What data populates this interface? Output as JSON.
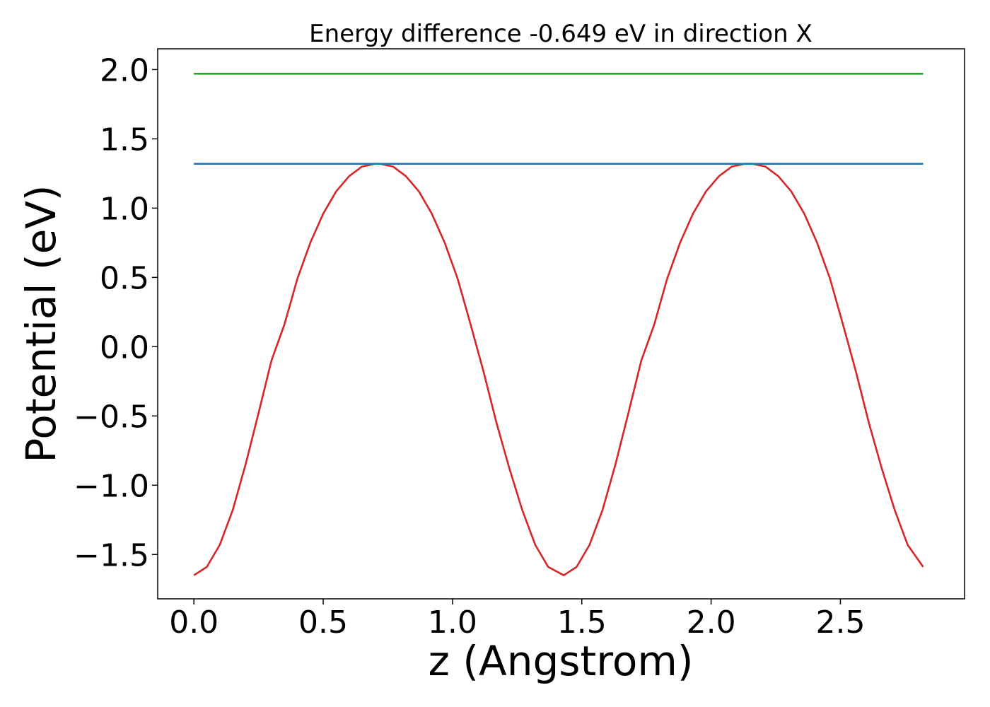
{
  "chart_data": {
    "type": "line",
    "title": "Energy difference -0.649 eV in direction X",
    "xlabel": "z (Angstrom)",
    "ylabel": "Potential (eV)",
    "xlim": [
      -0.14,
      2.98
    ],
    "ylim": [
      -1.82,
      2.15
    ],
    "xticks": [
      {
        "value": 0.0,
        "label": "0.0"
      },
      {
        "value": 0.5,
        "label": "0.5"
      },
      {
        "value": 1.0,
        "label": "1.0"
      },
      {
        "value": 1.5,
        "label": "1.5"
      },
      {
        "value": 2.0,
        "label": "2.0"
      },
      {
        "value": 2.5,
        "label": "2.5"
      }
    ],
    "yticks": [
      {
        "value": -1.5,
        "label": "−1.5"
      },
      {
        "value": -1.0,
        "label": "−1.0"
      },
      {
        "value": -0.5,
        "label": "−0.5"
      },
      {
        "value": 0.0,
        "label": "0.0"
      },
      {
        "value": 0.5,
        "label": "0.5"
      },
      {
        "value": 1.0,
        "label": "1.0"
      },
      {
        "value": 1.5,
        "label": "1.5"
      },
      {
        "value": 2.0,
        "label": "2.0"
      }
    ],
    "grid": false,
    "series": [
      {
        "color": "#d62728",
        "x": [
          0.0,
          0.05,
          0.1,
          0.15,
          0.2,
          0.25,
          0.3,
          0.35,
          0.4,
          0.45,
          0.5,
          0.55,
          0.6,
          0.65,
          0.7,
          0.72,
          0.77,
          0.82,
          0.87,
          0.92,
          0.97,
          1.02,
          1.07,
          1.12,
          1.17,
          1.22,
          1.27,
          1.32,
          1.37,
          1.43,
          1.48,
          1.53,
          1.58,
          1.63,
          1.68,
          1.73,
          1.78,
          1.83,
          1.88,
          1.93,
          1.98,
          2.03,
          2.08,
          2.13,
          2.16,
          2.21,
          2.26,
          2.31,
          2.36,
          2.41,
          2.46,
          2.51,
          2.56,
          2.61,
          2.66,
          2.71,
          2.76,
          2.82
        ],
        "values": [
          -1.65,
          -1.59,
          -1.43,
          -1.18,
          -0.85,
          -0.48,
          -0.1,
          0.16,
          0.49,
          0.75,
          0.96,
          1.12,
          1.23,
          1.3,
          1.32,
          1.32,
          1.3,
          1.23,
          1.12,
          0.96,
          0.75,
          0.49,
          0.16,
          -0.18,
          -0.55,
          -0.88,
          -1.18,
          -1.43,
          -1.59,
          -1.65,
          -1.59,
          -1.43,
          -1.18,
          -0.85,
          -0.48,
          -0.1,
          0.16,
          0.49,
          0.75,
          0.96,
          1.12,
          1.23,
          1.3,
          1.32,
          1.32,
          1.3,
          1.23,
          1.12,
          0.96,
          0.75,
          0.49,
          0.16,
          -0.18,
          -0.55,
          -0.88,
          -1.18,
          -1.43,
          -1.59
        ]
      },
      {
        "color": "#1f77b4",
        "x": [
          0.0,
          2.82
        ],
        "values": [
          1.32,
          1.32
        ]
      },
      {
        "color": "#2ca02c",
        "x": [
          0.0,
          2.82
        ],
        "values": [
          1.97,
          1.97
        ]
      }
    ]
  }
}
